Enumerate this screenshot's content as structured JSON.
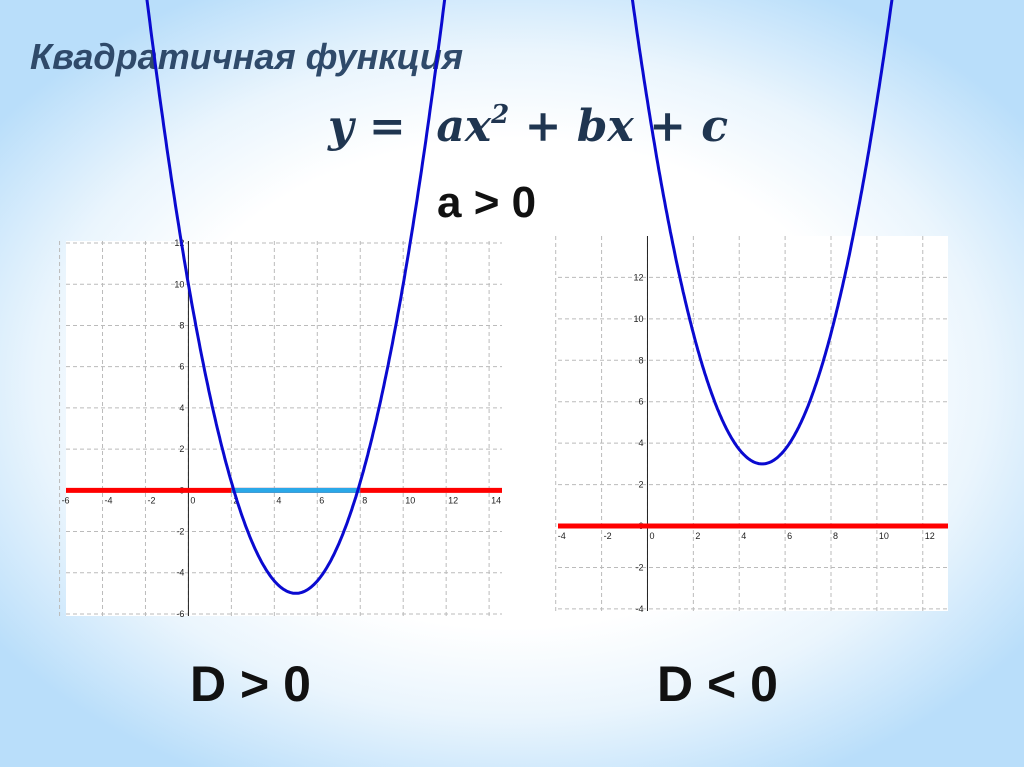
{
  "title": "Квадратичная функция",
  "formula": {
    "y": "y",
    "eq": "=",
    "a": "ax",
    "exp": "2",
    "rest": "+ bx + c"
  },
  "condition": "a > 0",
  "labels": {
    "left": "D > 0",
    "right": "D < 0"
  },
  "colors": {
    "curve": "#0a0ad0",
    "axis_line": "#ff0000",
    "interval": "#2aa8e8",
    "title": "#2f4a6a"
  },
  "chart_data": [
    {
      "type": "line",
      "function": "y = a(x-5)^2 - 5",
      "roots": [
        2,
        8
      ],
      "vertex": [
        5,
        -5
      ],
      "coef_a": 0.6,
      "xlim": [
        -5.7,
        14.6
      ],
      "ylim": [
        -6.1,
        12.1
      ],
      "grid": true,
      "xticks": [
        "-6",
        "-4",
        "-2",
        "0",
        "2",
        "4",
        "6",
        "8",
        "10",
        "12",
        "14"
      ],
      "yticks": [
        "-6",
        "-4",
        "-2",
        "0",
        "2",
        "4",
        "6",
        "8",
        "10",
        "12"
      ],
      "highlight_interval": [
        2,
        8
      ]
    },
    {
      "type": "line",
      "function": "y = a(x-5)^2 + 3",
      "roots": [],
      "vertex": [
        5,
        3
      ],
      "coef_a": 0.7,
      "xlim": [
        -3.9,
        13.1
      ],
      "ylim": [
        -4.1,
        14.0
      ],
      "grid": true,
      "xticks": [
        "-4",
        "-2",
        "0",
        "2",
        "4",
        "6",
        "8",
        "10",
        "12"
      ],
      "yticks": [
        "-4",
        "-2",
        "0",
        "2",
        "4",
        "6",
        "8",
        "10",
        "12"
      ]
    }
  ]
}
